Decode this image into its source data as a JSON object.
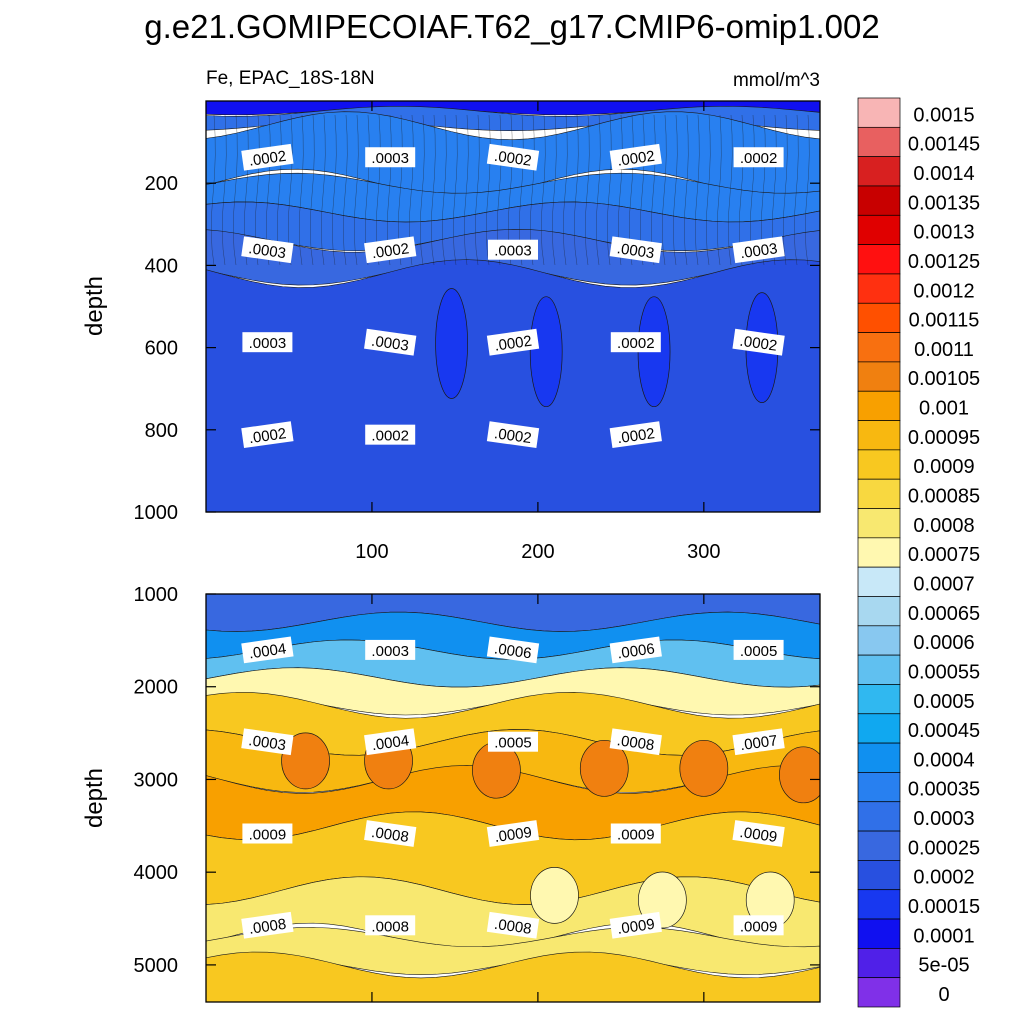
{
  "title": "g.e21.GOMIPECOIAF.T62_g17.CMIP6-omip1.002",
  "chart_data": [
    {
      "type": "contour",
      "panel": "upper",
      "variable_label": "Fe, EPAC_18S-18N",
      "units": "mmol/m^3",
      "ylabel": "depth",
      "xlim": [
        0,
        370
      ],
      "ylim": [
        0,
        1000
      ],
      "y_inverted": true,
      "x_ticks": [
        100,
        200,
        300
      ],
      "y_ticks": [
        200,
        400,
        600,
        800,
        1000
      ],
      "bands": [
        {
          "depth": 0,
          "value": 0.0001
        },
        {
          "depth": 25,
          "value": 0.0003
        },
        {
          "depth": 60,
          "value": 0.00034
        },
        {
          "depth": 200,
          "value": 0.00032
        },
        {
          "depth": 270,
          "value": 0.00026
        },
        {
          "depth": 340,
          "value": 0.00021
        },
        {
          "depth": 420,
          "value": 0.00017
        },
        {
          "depth": 1000,
          "value": 0.00016
        }
      ],
      "contour_labels": [
        ".0002",
        ".0003",
        ".0002",
        ".0002",
        ".0002",
        ".0003",
        ".0002",
        ".0003",
        ".0003",
        ".0003",
        ".0003",
        ".0003",
        ".0002",
        ".0002",
        ".0002",
        ".0002",
        ".0002",
        ".0002",
        ".0002"
      ],
      "features": [
        {
          "x": 148,
          "depth": 590,
          "value": 0.00012
        },
        {
          "x": 205,
          "depth": 610,
          "value": 0.00012
        },
        {
          "x": 270,
          "depth": 610,
          "value": 0.00012
        },
        {
          "x": 335,
          "depth": 600,
          "value": 0.00012
        }
      ]
    },
    {
      "type": "contour",
      "panel": "lower",
      "ylabel": "depth",
      "xlim": [
        0,
        370
      ],
      "ylim": [
        1000,
        5400
      ],
      "y_inverted": true,
      "y_ticks": [
        1000,
        2000,
        3000,
        4000,
        5000
      ],
      "bands": [
        {
          "depth": 1000,
          "value": 0.00025
        },
        {
          "depth": 1300,
          "value": 0.0004
        },
        {
          "depth": 1600,
          "value": 0.00055
        },
        {
          "depth": 1900,
          "value": 0.00072
        },
        {
          "depth": 2200,
          "value": 0.00088
        },
        {
          "depth": 2600,
          "value": 0.00095
        },
        {
          "depth": 3000,
          "value": 0.00096
        },
        {
          "depth": 3500,
          "value": 0.0009
        },
        {
          "depth": 4200,
          "value": 0.00078
        },
        {
          "depth": 4700,
          "value": 0.0008
        },
        {
          "depth": 5000,
          "value": 0.0009
        },
        {
          "depth": 5400,
          "value": 0.00096
        }
      ],
      "contour_labels": [
        ".0004",
        ".0003",
        ".0006",
        ".0006",
        ".0005",
        ".0003",
        ".0004",
        ".0005",
        ".0008",
        ".0007",
        ".0009",
        ".0008",
        ".0009",
        ".0009",
        ".0009",
        ".0008",
        ".0008",
        ".0008",
        ".0009",
        ".0009"
      ],
      "features": [
        {
          "x": 60,
          "depth": 2800,
          "value": 0.00101
        },
        {
          "x": 110,
          "depth": 2800,
          "value": 0.00101
        },
        {
          "x": 175,
          "depth": 2900,
          "value": 0.00101
        },
        {
          "x": 240,
          "depth": 2880,
          "value": 0.00101
        },
        {
          "x": 300,
          "depth": 2880,
          "value": 0.00101
        },
        {
          "x": 360,
          "depth": 2950,
          "value": 0.00101
        },
        {
          "x": 210,
          "depth": 4250,
          "value": 0.00072
        },
        {
          "x": 275,
          "depth": 4300,
          "value": 0.00072
        },
        {
          "x": 340,
          "depth": 4300,
          "value": 0.00072
        }
      ]
    }
  ],
  "colorbar": {
    "labels": [
      "0.0015",
      "0.00145",
      "0.0014",
      "0.00135",
      "0.0013",
      "0.00125",
      "0.0012",
      "0.00115",
      "0.0011",
      "0.00105",
      "0.001",
      "0.00095",
      "0.0009",
      "0.00085",
      "0.0008",
      "0.00075",
      "0.0007",
      "0.00065",
      "0.0006",
      "0.00055",
      "0.0005",
      "0.00045",
      "0.0004",
      "0.00035",
      "0.0003",
      "0.00025",
      "0.0002",
      "0.00015",
      "0.0001",
      "5e-05",
      "0"
    ],
    "colors": [
      "#f8b5b5",
      "#e86060",
      "#d82020",
      "#c80000",
      "#e00000",
      "#ff1010",
      "#ff3010",
      "#ff5000",
      "#f87010",
      "#f08010",
      "#f8a000",
      "#f8b810",
      "#f8c820",
      "#f8d840",
      "#f8e870",
      "#fff8b0",
      "#c8e8f8",
      "#a8d8f0",
      "#88c8f0",
      "#60c0f0",
      "#30b8f0",
      "#10a8f0",
      "#1090f0",
      "#2880f0",
      "#3070e8",
      "#3868e0",
      "#2850e0",
      "#1838f0",
      "#1010f0",
      "#5020e8",
      "#8030e8"
    ]
  }
}
